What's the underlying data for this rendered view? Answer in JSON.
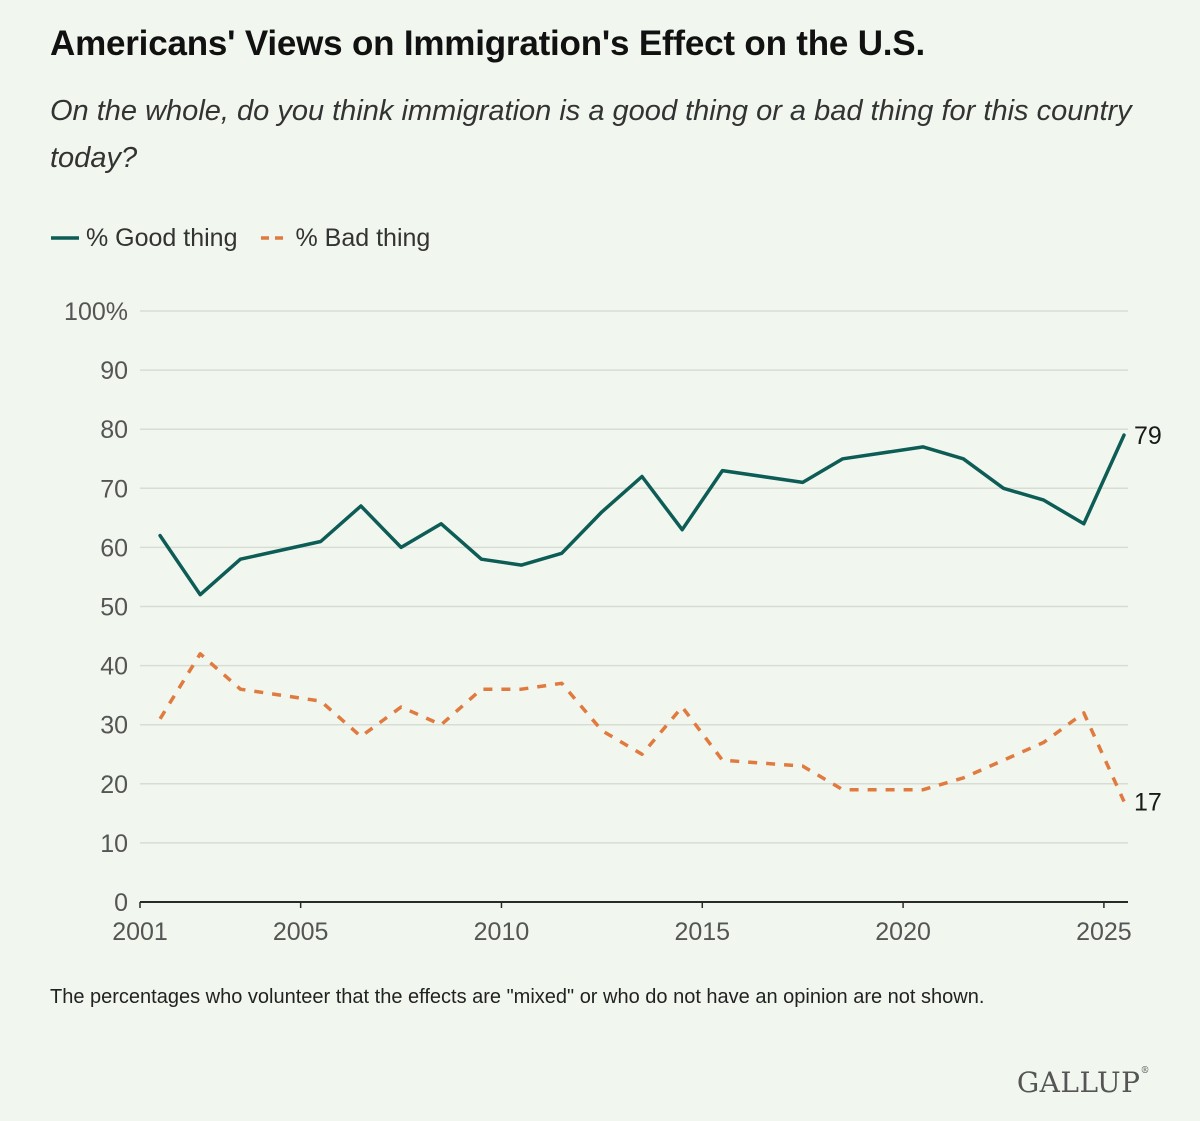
{
  "header": {
    "title": "Americans' Views on Immigration's Effect on the U.S.",
    "subtitle": "On the whole, do you think immigration is a good thing or a bad thing for this country today?"
  },
  "legend": {
    "good_label": "% Good thing",
    "bad_label": "% Bad thing"
  },
  "footer": {
    "note": "The percentages who volunteer that the effects are \"mixed\" or who do not have an opinion are not shown.",
    "logo": "GALLUP"
  },
  "colors": {
    "good": "#0d5c55",
    "bad": "#e07a3f",
    "grid": "#d7ddd5",
    "axis": "#2a2a2a",
    "tick_text": "#555555",
    "background": "#f1f7ef"
  },
  "chart_data": {
    "type": "line",
    "title": "Americans' Views on Immigration's Effect on the U.S.",
    "xlabel": "",
    "ylabel": "",
    "xlim": [
      2001,
      2025.6
    ],
    "ylim": [
      0,
      100
    ],
    "x_ticks": [
      2001,
      2005,
      2010,
      2015,
      2020,
      2025
    ],
    "y_ticks": [
      0,
      10,
      20,
      30,
      40,
      50,
      60,
      70,
      80,
      90,
      100
    ],
    "y_tick_labels": [
      "0",
      "10",
      "20",
      "30",
      "40",
      "50",
      "60",
      "70",
      "80",
      "90",
      "100%"
    ],
    "grid": true,
    "legend_position": "top-left",
    "x": [
      2001.5,
      2002.5,
      2003.5,
      2005.5,
      2006.5,
      2007.5,
      2008.5,
      2009.5,
      2010.5,
      2011.5,
      2012.5,
      2013.5,
      2014.5,
      2015.5,
      2017.5,
      2018.5,
      2020.5,
      2021.5,
      2022.5,
      2023.5,
      2024.5,
      2025.5
    ],
    "series": [
      {
        "name": "% Good thing",
        "values": [
          62,
          52,
          58,
          61,
          67,
          60,
          64,
          58,
          57,
          59,
          66,
          72,
          63,
          73,
          71,
          75,
          77,
          75,
          70,
          68,
          64,
          79
        ],
        "end_label": "79"
      },
      {
        "name": "% Bad thing",
        "values": [
          31,
          42,
          36,
          34,
          28,
          33,
          30,
          36,
          36,
          37,
          29,
          25,
          33,
          24,
          23,
          19,
          19,
          21,
          24,
          27,
          32,
          17
        ],
        "end_label": "17"
      }
    ]
  }
}
